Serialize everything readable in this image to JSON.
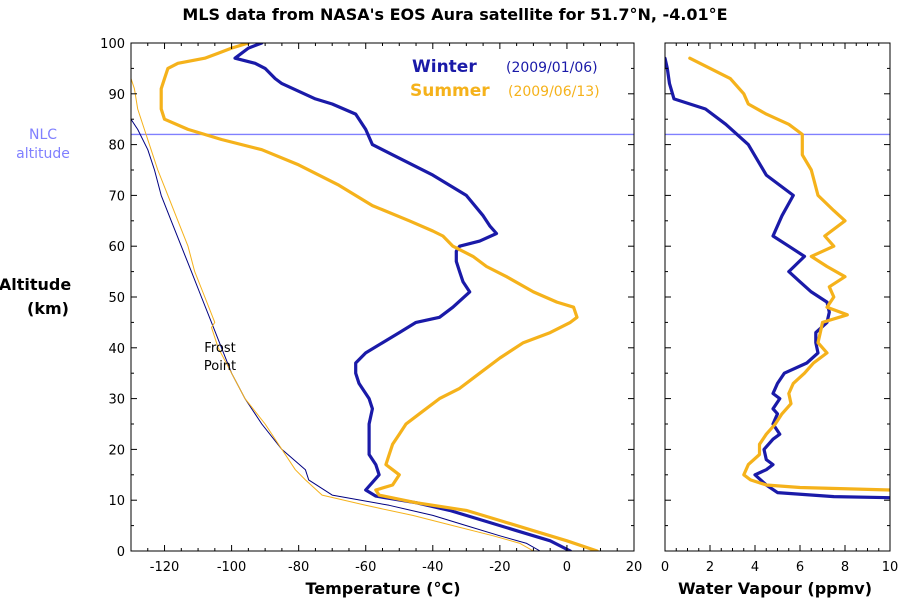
{
  "title": "MLS data from NASA's EOS Aura satellite for 51.7°N, -4.01°E",
  "ylabel_line1": "Altitude",
  "ylabel_line2": "(km)",
  "nlc_line1": "NLC",
  "nlc_line2": "altitude",
  "frost_line1": "Frost",
  "frost_line2": "Point",
  "colors": {
    "winter": "#1a1aa8",
    "summer": "#f5b21b",
    "nlc": "#8080ff",
    "frost": "#000080"
  },
  "legend": {
    "winter_name": "Winter",
    "winter_date": "(2009/01/06)",
    "summer_name": "Summer",
    "summer_date": "(2009/06/13)"
  },
  "chart_data": [
    {
      "type": "line",
      "xlabel": "Temperature (°C)",
      "xlim": [
        -130,
        20
      ],
      "ylim": [
        0,
        100
      ],
      "xticks": [
        -120,
        -100,
        -80,
        -60,
        -40,
        -20,
        0,
        20
      ],
      "yticks": [
        0,
        10,
        20,
        30,
        40,
        50,
        60,
        70,
        80,
        90,
        100
      ],
      "nlc_altitude": 82,
      "series": [
        {
          "name": "Winter",
          "points": [
            [
              1,
              0
            ],
            [
              -5,
              2
            ],
            [
              -15,
              4
            ],
            [
              -25,
              6
            ],
            [
              -35,
              8
            ],
            [
              -45,
              9.5
            ],
            [
              -57,
              10.8
            ],
            [
              -60,
              12
            ],
            [
              -58,
              13.5
            ],
            [
              -56,
              15
            ],
            [
              -57,
              17
            ],
            [
              -59,
              19
            ],
            [
              -59,
              22
            ],
            [
              -59,
              25
            ],
            [
              -58,
              28
            ],
            [
              -59,
              30
            ],
            [
              -60,
              31
            ],
            [
              -62,
              33
            ],
            [
              -63,
              35
            ],
            [
              -63,
              37
            ],
            [
              -60,
              39
            ],
            [
              -55,
              41
            ],
            [
              -50,
              43
            ],
            [
              -45,
              45
            ],
            [
              -38,
              46
            ],
            [
              -34,
              48
            ],
            [
              -29,
              51
            ],
            [
              -31,
              53
            ],
            [
              -32,
              55
            ],
            [
              -33,
              57
            ],
            [
              -33,
              59
            ],
            [
              -32,
              60
            ],
            [
              -26,
              61
            ],
            [
              -21,
              62.5
            ],
            [
              -23,
              64
            ],
            [
              -25,
              66
            ],
            [
              -30,
              70
            ],
            [
              -40,
              74
            ],
            [
              -52,
              78
            ],
            [
              -58,
              80
            ],
            [
              -60,
              83
            ],
            [
              -63,
              86
            ],
            [
              -70,
              88
            ],
            [
              -75,
              89
            ],
            [
              -85,
              92
            ],
            [
              -87,
              93
            ],
            [
              -90,
              95
            ],
            [
              -93,
              96
            ],
            [
              -99,
              97
            ],
            [
              -95,
              99
            ],
            [
              -91,
              100
            ]
          ]
        },
        {
          "name": "Summer",
          "points": [
            [
              9,
              0
            ],
            [
              0,
              2
            ],
            [
              -10,
              4
            ],
            [
              -20,
              6
            ],
            [
              -30,
              8
            ],
            [
              -45,
              9.5
            ],
            [
              -56,
              11
            ],
            [
              -57,
              12
            ],
            [
              -52,
              13
            ],
            [
              -50,
              15
            ],
            [
              -52,
              16
            ],
            [
              -54,
              17
            ],
            [
              -53,
              19
            ],
            [
              -52,
              21
            ],
            [
              -50,
              23
            ],
            [
              -48,
              25
            ],
            [
              -44,
              27
            ],
            [
              -38,
              30
            ],
            [
              -32,
              32
            ],
            [
              -26,
              35
            ],
            [
              -20,
              38
            ],
            [
              -13,
              41
            ],
            [
              -5,
              43
            ],
            [
              1,
              45
            ],
            [
              3,
              46
            ],
            [
              2,
              48
            ],
            [
              -3,
              49
            ],
            [
              -10,
              51
            ],
            [
              -18,
              54
            ],
            [
              -24,
              56
            ],
            [
              -28,
              58
            ],
            [
              -34,
              60
            ],
            [
              -37,
              62
            ],
            [
              -40,
              63
            ],
            [
              -47,
              65
            ],
            [
              -58,
              68
            ],
            [
              -68,
              72
            ],
            [
              -80,
              76
            ],
            [
              -91,
              79
            ],
            [
              -103,
              81
            ],
            [
              -113,
              83
            ],
            [
              -120,
              85
            ],
            [
              -121,
              87
            ],
            [
              -121,
              89
            ],
            [
              -121,
              91
            ],
            [
              -120,
              93
            ],
            [
              -119,
              95
            ],
            [
              -116,
              96
            ],
            [
              -108,
              97
            ],
            [
              -104,
              98
            ],
            [
              -100,
              99
            ],
            [
              -95,
              100
            ]
          ]
        },
        {
          "name": "Winter frost point",
          "points": [
            [
              -8,
              0
            ],
            [
              -12,
              1.5
            ],
            [
              -20,
              3
            ],
            [
              -30,
              5
            ],
            [
              -40,
              7
            ],
            [
              -53,
              9
            ],
            [
              -70,
              11
            ],
            [
              -77,
              14
            ],
            [
              -78,
              16
            ],
            [
              -85,
              20
            ],
            [
              -91,
              25
            ],
            [
              -96,
              30
            ],
            [
              -100,
              35
            ],
            [
              -103,
              40
            ],
            [
              -106,
              45
            ],
            [
              -109,
              50
            ],
            [
              -112,
              55
            ],
            [
              -115,
              60
            ],
            [
              -118,
              65
            ],
            [
              -121,
              70
            ],
            [
              -123,
              75
            ],
            [
              -125,
              79
            ],
            [
              -128,
              83
            ],
            [
              -131,
              86
            ]
          ]
        },
        {
          "name": "Summer frost point",
          "points": [
            [
              -10,
              0
            ],
            [
              -14,
              1.5
            ],
            [
              -22,
              3
            ],
            [
              -34,
              5
            ],
            [
              -46,
              7
            ],
            [
              -60,
              9
            ],
            [
              -73,
              11
            ],
            [
              -78,
              14
            ],
            [
              -81,
              16
            ],
            [
              -85,
              20
            ],
            [
              -90,
              25
            ],
            [
              -96,
              30
            ],
            [
              -100,
              35
            ],
            [
              -104,
              40
            ],
            [
              -106,
              44
            ],
            [
              -105,
              45
            ],
            [
              -108,
              50
            ],
            [
              -111,
              55
            ],
            [
              -113,
              60
            ],
            [
              -116,
              65
            ],
            [
              -119,
              70
            ],
            [
              -122,
              75
            ],
            [
              -124,
              79
            ],
            [
              -126,
              83
            ],
            [
              -128,
              87
            ],
            [
              -129,
              91
            ],
            [
              -131,
              95
            ]
          ]
        }
      ]
    },
    {
      "type": "line",
      "xlabel": "Water Vapour (ppmv)",
      "xlim": [
        0,
        10
      ],
      "ylim": [
        0,
        100
      ],
      "xticks": [
        0,
        2,
        4,
        6,
        8,
        10
      ],
      "nlc_altitude": 82,
      "series": [
        {
          "name": "Winter",
          "points": [
            [
              10,
              10.5
            ],
            [
              7.5,
              10.7
            ],
            [
              5,
              11.5
            ],
            [
              4.5,
              13
            ],
            [
              4,
              15
            ],
            [
              4.5,
              16
            ],
            [
              4.8,
              17
            ],
            [
              4.5,
              18
            ],
            [
              4.4,
              20
            ],
            [
              4.8,
              22
            ],
            [
              5.1,
              23
            ],
            [
              4.8,
              25
            ],
            [
              5,
              27
            ],
            [
              4.8,
              28
            ],
            [
              5.1,
              30
            ],
            [
              4.8,
              31
            ],
            [
              5,
              33
            ],
            [
              5.3,
              35
            ],
            [
              6.3,
              37
            ],
            [
              6.8,
              39
            ],
            [
              6.7,
              41
            ],
            [
              6.7,
              43
            ],
            [
              7.2,
              45
            ],
            [
              7.3,
              47
            ],
            [
              7.2,
              49
            ],
            [
              6.5,
              51
            ],
            [
              6,
              53
            ],
            [
              5.5,
              55
            ],
            [
              6.2,
              58
            ],
            [
              5.5,
              60
            ],
            [
              4.8,
              62
            ],
            [
              5.2,
              66
            ],
            [
              5.7,
              70
            ],
            [
              4.5,
              74
            ],
            [
              3.7,
              80
            ],
            [
              2.7,
              84
            ],
            [
              1.8,
              87
            ],
            [
              0.4,
              89
            ],
            [
              0.2,
              92
            ],
            [
              0.1,
              95
            ],
            [
              0.0,
              97
            ]
          ]
        },
        {
          "name": "Summer",
          "points": [
            [
              10,
              12
            ],
            [
              6,
              12.5
            ],
            [
              4.5,
              13
            ],
            [
              3.8,
              14
            ],
            [
              3.5,
              15
            ],
            [
              3.7,
              17
            ],
            [
              4.2,
              19
            ],
            [
              4.2,
              21
            ],
            [
              4.5,
              23
            ],
            [
              4.9,
              25
            ],
            [
              5.2,
              27
            ],
            [
              5.6,
              29
            ],
            [
              5.5,
              31
            ],
            [
              5.7,
              33
            ],
            [
              6.2,
              35
            ],
            [
              6.6,
              37
            ],
            [
              7.2,
              39
            ],
            [
              6.8,
              41
            ],
            [
              6.9,
              43
            ],
            [
              7,
              45
            ],
            [
              8.1,
              46.5
            ],
            [
              7.2,
              48
            ],
            [
              7.5,
              50
            ],
            [
              7.3,
              52
            ],
            [
              8,
              54
            ],
            [
              7.2,
              56
            ],
            [
              6.5,
              58
            ],
            [
              7.5,
              60
            ],
            [
              7.1,
              62
            ],
            [
              8,
              65
            ],
            [
              7.5,
              67
            ],
            [
              6.8,
              70
            ],
            [
              6.5,
              75
            ],
            [
              6.1,
              78
            ],
            [
              6.1,
              82
            ],
            [
              5.5,
              84
            ],
            [
              4.5,
              86
            ],
            [
              3.7,
              88
            ],
            [
              3.5,
              90
            ],
            [
              2.9,
              93
            ],
            [
              1.1,
              97
            ]
          ]
        }
      ]
    }
  ]
}
